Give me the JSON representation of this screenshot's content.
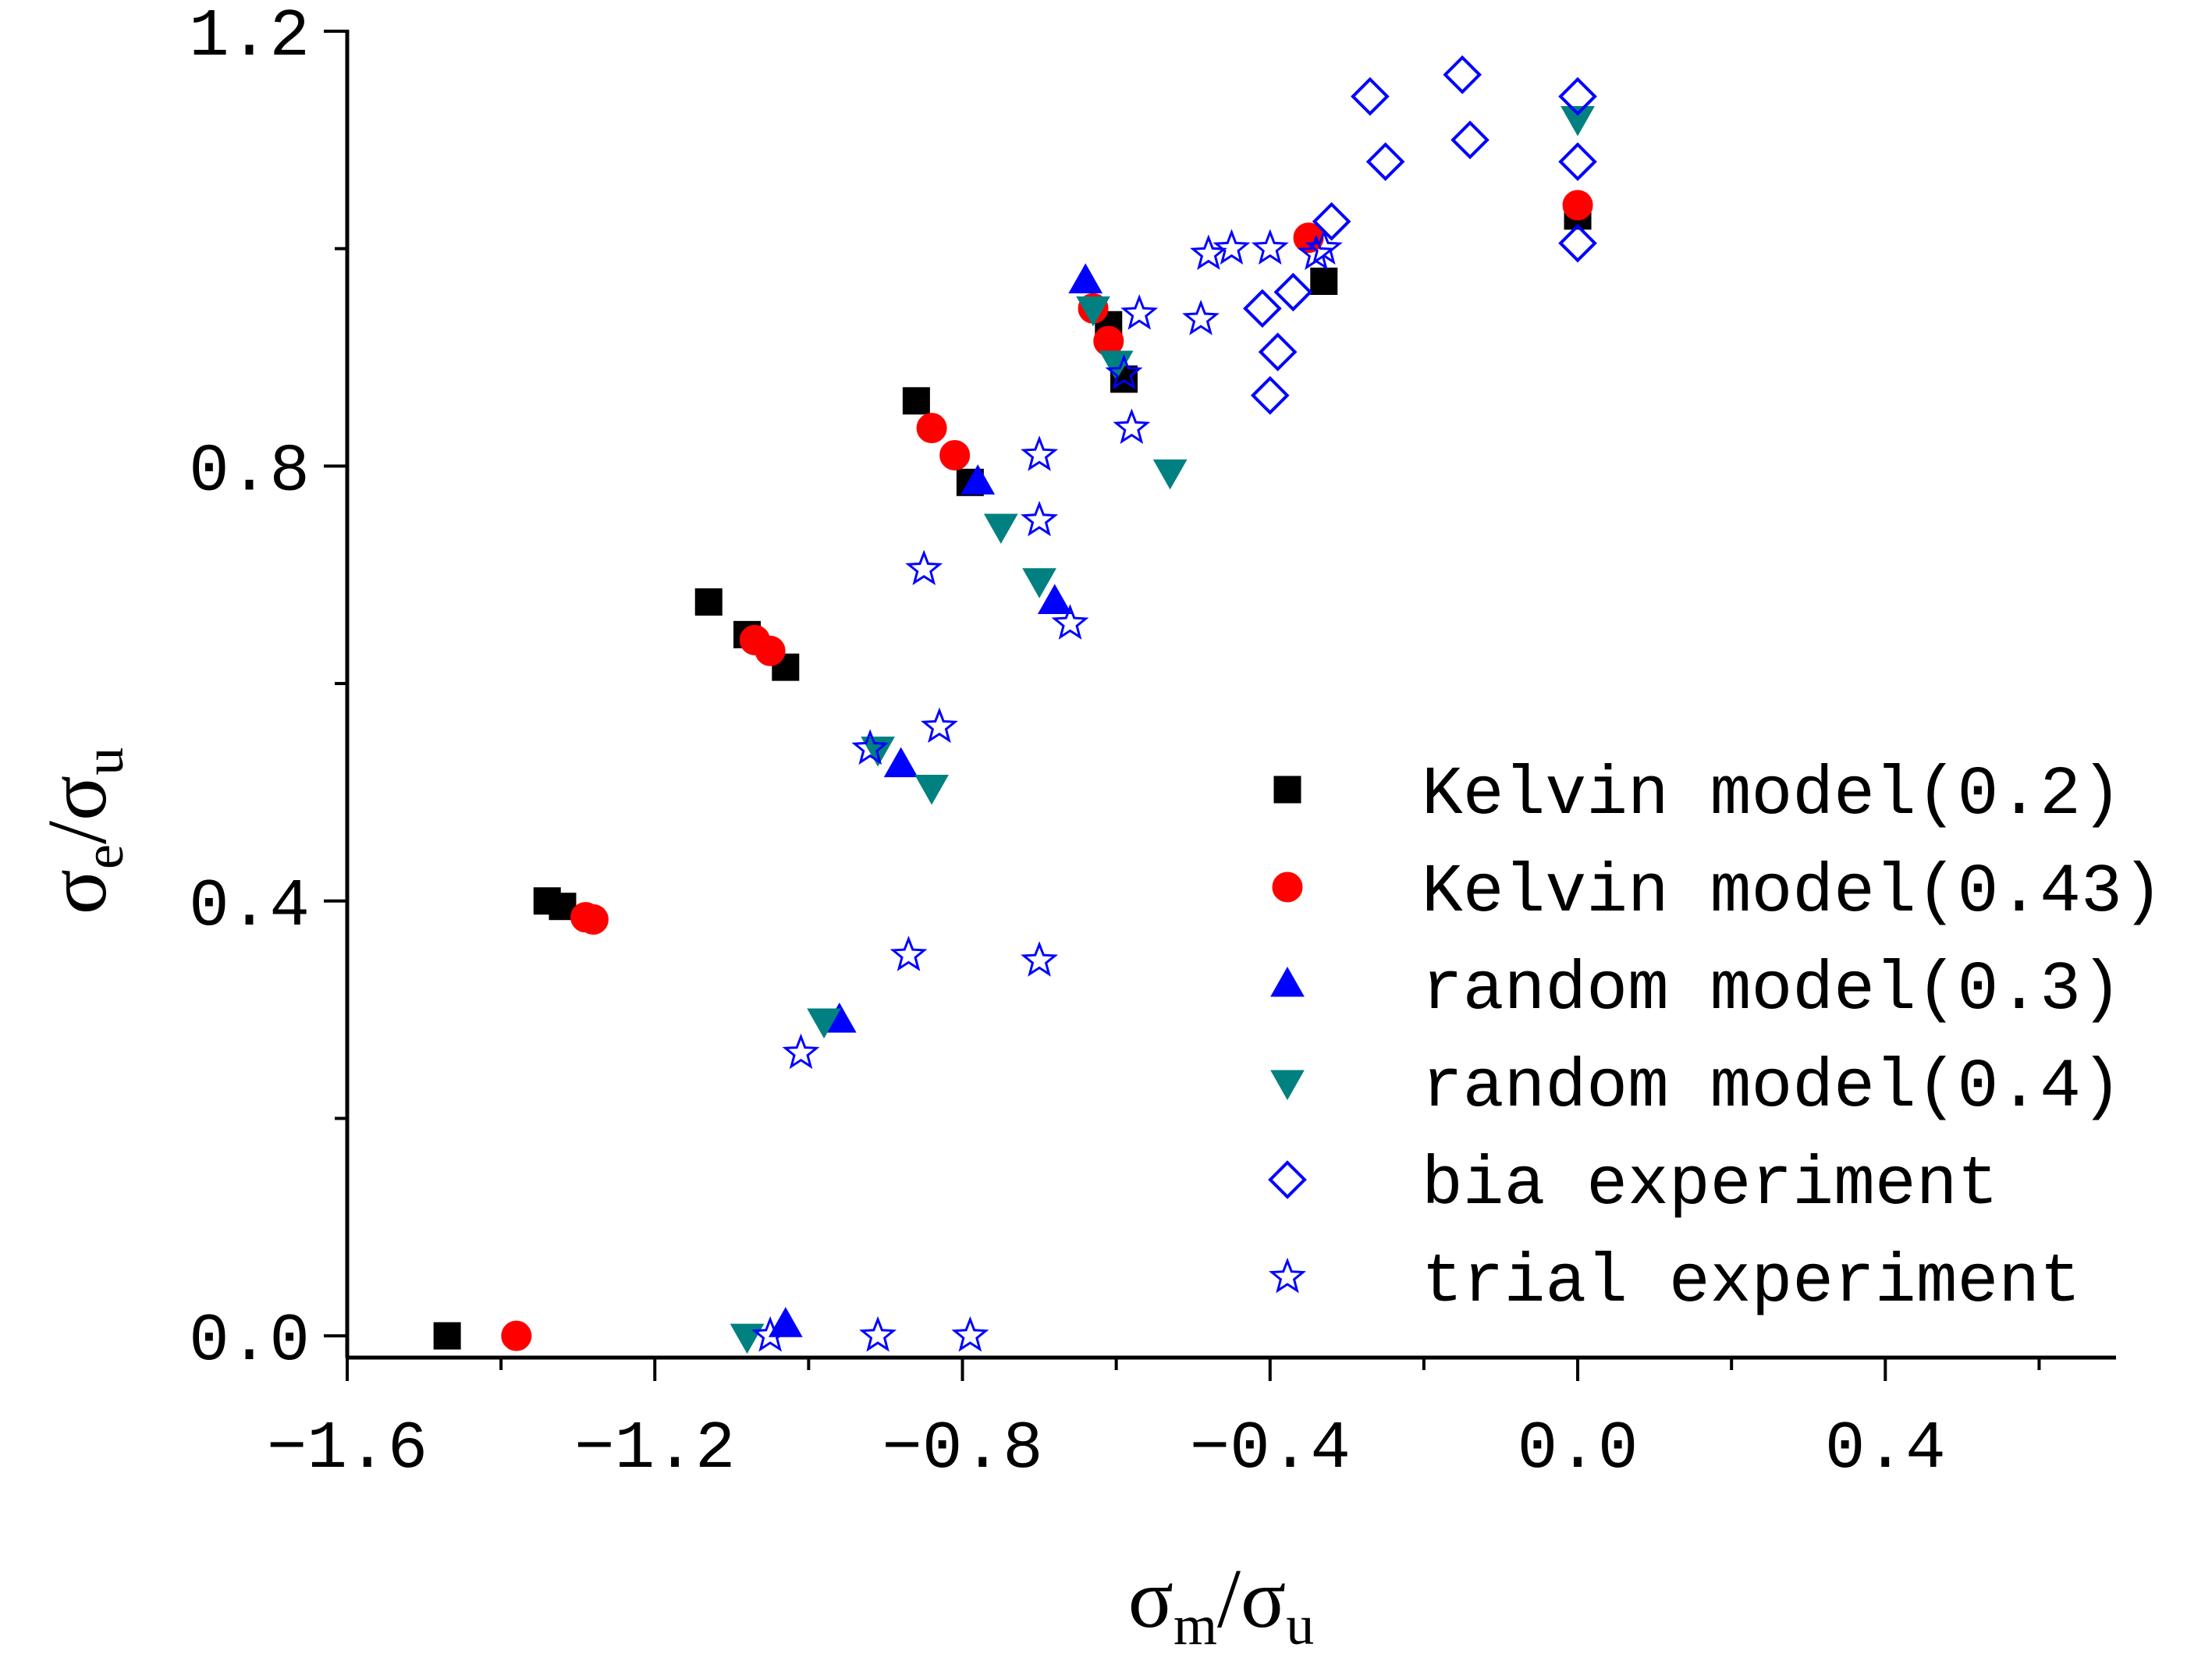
{
  "chart_data": {
    "type": "scatter",
    "title": "",
    "xlabel": {
      "main": "σ",
      "sub": "m",
      "sep": "/",
      "main2": "σ",
      "sub2": "u"
    },
    "ylabel": {
      "main": "σ",
      "sub": "e",
      "sep": "/",
      "main2": "σ",
      "sub2": "u"
    },
    "xlim": [
      -1.6,
      0.7
    ],
    "ylim": [
      -0.02,
      1.2
    ],
    "xticks": [
      -1.6,
      -1.2,
      -0.8,
      -0.4,
      0.0,
      0.4
    ],
    "xtick_labels": [
      "−1.6",
      "−1.2",
      "−0.8",
      "−0.4",
      "0.0",
      "0.4"
    ],
    "yticks": [
      0.0,
      0.4,
      0.8,
      1.2
    ],
    "ytick_labels": [
      "0.0",
      "0.4",
      "0.8",
      "1.2"
    ],
    "legend_position": "right",
    "series": [
      {
        "name": "Kelvin model(0.2)",
        "marker": "square",
        "color": "#000000",
        "filled": true,
        "points": [
          [
            -1.47,
            0.0
          ],
          [
            -1.34,
            0.4
          ],
          [
            -1.32,
            0.395
          ],
          [
            -1.13,
            0.675
          ],
          [
            -1.08,
            0.645
          ],
          [
            -1.03,
            0.615
          ],
          [
            -0.86,
            0.86
          ],
          [
            -0.79,
            0.785
          ],
          [
            -0.61,
            0.93
          ],
          [
            -0.59,
            0.88
          ],
          [
            -0.33,
            0.97
          ],
          [
            0.0,
            1.03
          ]
        ]
      },
      {
        "name": "Kelvin model(0.43)",
        "marker": "circle",
        "color": "#ff0000",
        "filled": true,
        "points": [
          [
            -1.38,
            0.0
          ],
          [
            -1.29,
            0.385
          ],
          [
            -1.28,
            0.383
          ],
          [
            -1.07,
            0.64
          ],
          [
            -1.05,
            0.63
          ],
          [
            -0.84,
            0.835
          ],
          [
            -0.81,
            0.81
          ],
          [
            -0.63,
            0.945
          ],
          [
            -0.61,
            0.915
          ],
          [
            -0.35,
            1.01
          ],
          [
            0.0,
            1.04
          ]
        ]
      },
      {
        "name": "random model(0.3)",
        "marker": "triangle-up",
        "color": "#0000ff",
        "filled": true,
        "points": [
          [
            -1.03,
            0.01
          ],
          [
            -0.96,
            0.29
          ],
          [
            -0.88,
            0.525
          ],
          [
            -0.78,
            0.785
          ],
          [
            -0.68,
            0.675
          ],
          [
            -0.64,
            0.97
          ]
        ]
      },
      {
        "name": "random model(0.4)",
        "marker": "triangle-down",
        "color": "#008080",
        "filled": true,
        "points": [
          [
            -1.08,
            0.0
          ],
          [
            -0.98,
            0.29
          ],
          [
            -0.91,
            0.54
          ],
          [
            -0.84,
            0.505
          ],
          [
            -0.75,
            0.745
          ],
          [
            -0.7,
            0.695
          ],
          [
            -0.63,
            0.945
          ],
          [
            -0.6,
            0.895
          ],
          [
            -0.53,
            0.795
          ],
          [
            0.0,
            1.12
          ]
        ]
      },
      {
        "name": "bia experiment",
        "marker": "diamond",
        "color": "#0000ff",
        "filled": false,
        "points": [
          [
            -0.27,
            1.14
          ],
          [
            -0.15,
            1.16
          ],
          [
            -0.25,
            1.08
          ],
          [
            -0.14,
            1.1
          ],
          [
            0.0,
            1.14
          ],
          [
            0.0,
            1.08
          ],
          [
            0.0,
            1.005
          ],
          [
            -0.32,
            1.025
          ],
          [
            -0.37,
            0.96
          ],
          [
            -0.41,
            0.945
          ],
          [
            -0.39,
            0.905
          ],
          [
            -0.4,
            0.865
          ]
        ]
      },
      {
        "name": "trial experiment",
        "marker": "star",
        "color": "#0000ff",
        "filled": false,
        "points": [
          [
            -1.05,
            0.0
          ],
          [
            -0.91,
            0.0
          ],
          [
            -0.79,
            0.0
          ],
          [
            -1.01,
            0.26
          ],
          [
            -0.87,
            0.35
          ],
          [
            -0.7,
            0.345
          ],
          [
            -0.92,
            0.54
          ],
          [
            -0.83,
            0.56
          ],
          [
            -0.85,
            0.705
          ],
          [
            -0.7,
            0.75
          ],
          [
            -0.7,
            0.81
          ],
          [
            -0.66,
            0.655
          ],
          [
            -0.58,
            0.835
          ],
          [
            -0.59,
            0.885
          ],
          [
            -0.57,
            0.94
          ],
          [
            -0.49,
            0.935
          ],
          [
            -0.48,
            0.995
          ],
          [
            -0.45,
            1.0
          ],
          [
            -0.4,
            1.0
          ],
          [
            -0.33,
            1.0
          ],
          [
            -0.34,
            0.995
          ]
        ]
      }
    ]
  }
}
